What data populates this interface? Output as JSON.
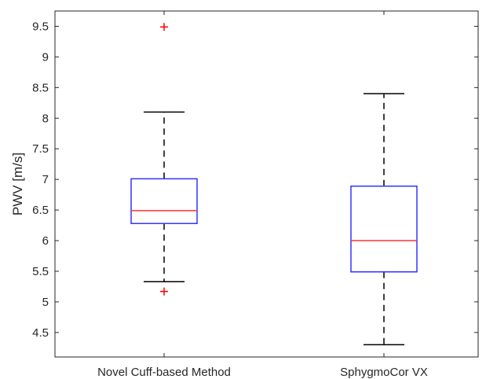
{
  "chart_data": {
    "type": "boxplot",
    "title": "",
    "xlabel": "",
    "ylabel": "PWV [m/s]",
    "ylim": [
      4.1,
      9.75
    ],
    "yticks": [
      "4.5",
      "5",
      "5.5",
      "6",
      "6.5",
      "7",
      "7.5",
      "8",
      "8.5",
      "9",
      "9.5"
    ],
    "categories": [
      "Novel Cuff-based Method",
      "SphygmoCor VX"
    ],
    "boxes": [
      {
        "category": "Novel Cuff-based Method",
        "whisker_low": 5.33,
        "q1": 6.28,
        "median": 6.49,
        "q3": 7.01,
        "whisker_high": 8.1,
        "outliers": [
          9.49,
          5.17
        ]
      },
      {
        "category": "SphygmoCor VX",
        "whisker_low": 4.3,
        "q1": 5.49,
        "median": 6.0,
        "q3": 6.89,
        "whisker_high": 8.4,
        "outliers": []
      }
    ],
    "colors": {
      "box": "#3333ff",
      "median": "#ff3333",
      "whisker": "#000000",
      "outlier": "#ff0000",
      "axis": "#262626"
    }
  }
}
